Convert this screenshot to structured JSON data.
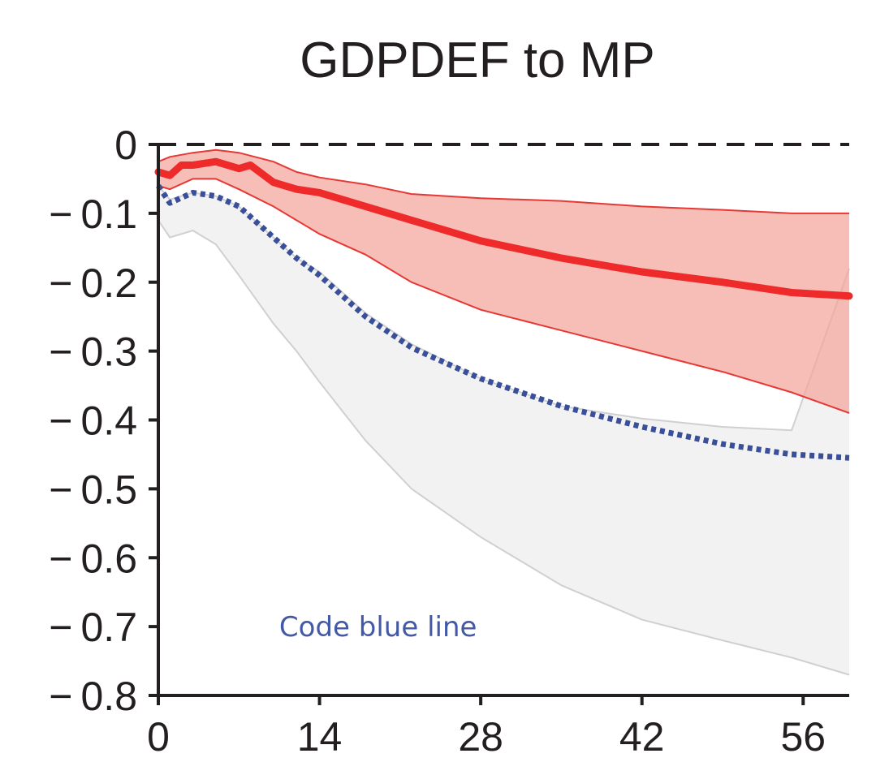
{
  "chart_data": {
    "type": "line",
    "title": "GDPDEF to MP",
    "xlabel": "",
    "ylabel": "",
    "xlim": [
      0,
      60
    ],
    "ylim": [
      -0.8,
      0
    ],
    "x_ticks": [
      0,
      14,
      28,
      42,
      56
    ],
    "x_tick_labels": [
      "0",
      "14",
      "28",
      "42",
      "56"
    ],
    "y_ticks": [
      0,
      -0.1,
      -0.2,
      -0.3,
      -0.4,
      -0.5,
      -0.6,
      -0.7,
      -0.8
    ],
    "y_tick_labels": [
      "0",
      "− 0.1",
      "− 0.2",
      "− 0.3",
      "− 0.4",
      "− 0.5",
      "− 0.6",
      "− 0.7",
      "− 0.8"
    ],
    "grid": false,
    "legend": "none",
    "reference_line": {
      "y": 0,
      "style": "dashed",
      "color": "#231f20"
    },
    "bands": [
      {
        "color": "#f2f2f2",
        "edge_color": "#d0d0d0",
        "x": [
          0,
          1,
          3,
          5,
          7,
          10,
          12,
          14,
          18,
          22,
          28,
          35,
          42,
          49,
          55,
          60
        ],
        "upper": [
          -0.06,
          -0.08,
          -0.07,
          -0.075,
          -0.09,
          -0.135,
          -0.165,
          -0.185,
          -0.245,
          -0.29,
          -0.34,
          -0.38,
          -0.398,
          -0.41,
          -0.415,
          -0.18
        ],
        "lower": [
          -0.11,
          -0.135,
          -0.125,
          -0.145,
          -0.19,
          -0.26,
          -0.3,
          -0.345,
          -0.43,
          -0.5,
          -0.57,
          -0.64,
          -0.69,
          -0.72,
          -0.745,
          -0.77
        ]
      },
      {
        "color": "#f4a39b",
        "edge_color": "#e53935",
        "opacity": 0.72,
        "x": [
          0,
          1,
          3,
          5,
          7,
          10,
          12,
          14,
          18,
          22,
          28,
          35,
          42,
          49,
          55,
          60
        ],
        "upper": [
          -0.025,
          -0.018,
          -0.012,
          -0.008,
          -0.012,
          -0.025,
          -0.04,
          -0.048,
          -0.058,
          -0.072,
          -0.078,
          -0.082,
          -0.09,
          -0.095,
          -0.1,
          -0.1
        ],
        "lower": [
          -0.06,
          -0.065,
          -0.05,
          -0.05,
          -0.065,
          -0.09,
          -0.11,
          -0.13,
          -0.16,
          -0.2,
          -0.24,
          -0.27,
          -0.3,
          -0.33,
          -0.36,
          -0.39
        ]
      }
    ],
    "series": [
      {
        "color": "#ee2a2a",
        "style": "solid",
        "x": [
          0,
          1,
          2,
          3,
          5,
          7,
          8,
          10,
          12,
          14,
          18,
          22,
          28,
          35,
          42,
          49,
          55,
          60
        ],
        "values": [
          -0.04,
          -0.045,
          -0.03,
          -0.03,
          -0.025,
          -0.035,
          -0.03,
          -0.055,
          -0.065,
          -0.07,
          -0.09,
          -0.11,
          -0.14,
          -0.165,
          -0.185,
          -0.2,
          -0.215,
          -0.22
        ]
      },
      {
        "color": "#3a4f9a",
        "style": "dotted",
        "x": [
          0,
          1,
          3,
          5,
          7,
          10,
          12,
          14,
          18,
          22,
          28,
          35,
          42,
          49,
          55,
          60
        ],
        "values": [
          -0.06,
          -0.085,
          -0.07,
          -0.075,
          -0.09,
          -0.135,
          -0.165,
          -0.19,
          -0.25,
          -0.295,
          -0.34,
          -0.38,
          -0.41,
          -0.435,
          -0.45,
          -0.455
        ]
      }
    ],
    "annotations": [
      {
        "text": "Code blue line",
        "x": 10.5,
        "y": -0.7,
        "color": "#4459a6"
      }
    ]
  }
}
